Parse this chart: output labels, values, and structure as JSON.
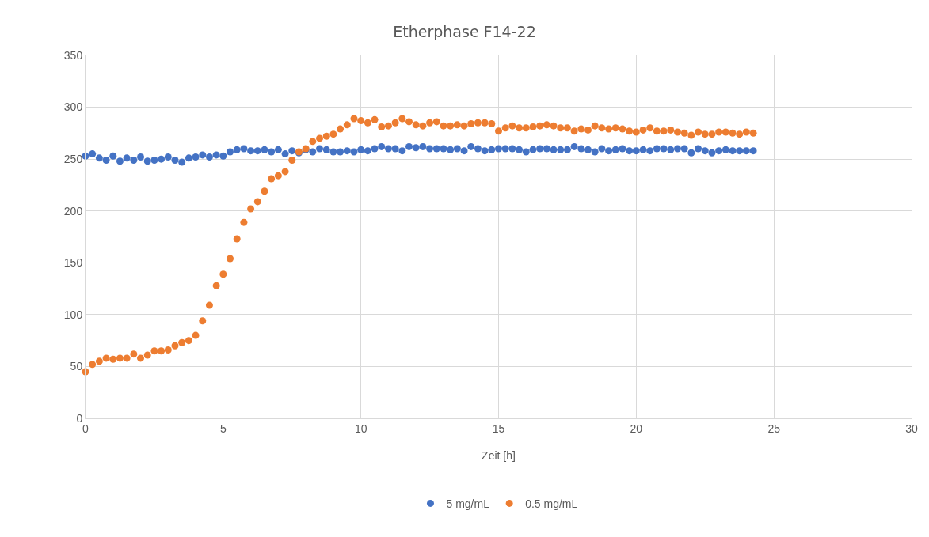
{
  "chart_data": {
    "type": "scatter",
    "title": "Etherphase F14-22",
    "xlabel": "Zeit [h]",
    "x": [
      0,
      0.25,
      0.5,
      0.75,
      1,
      1.25,
      1.5,
      1.75,
      2,
      2.25,
      2.5,
      2.75,
      3,
      3.25,
      3.5,
      3.75,
      4,
      4.25,
      4.5,
      4.75,
      5,
      5.25,
      5.5,
      5.75,
      6,
      6.25,
      6.5,
      6.75,
      7,
      7.25,
      7.5,
      7.75,
      8,
      8.25,
      8.5,
      8.75,
      9,
      9.25,
      9.5,
      9.75,
      10,
      10.25,
      10.5,
      10.75,
      11,
      11.25,
      11.5,
      11.75,
      12,
      12.25,
      12.5,
      12.75,
      13,
      13.25,
      13.5,
      13.75,
      14,
      14.25,
      14.5,
      14.75,
      15,
      15.25,
      15.5,
      15.75,
      16,
      16.25,
      16.5,
      16.75,
      17,
      17.25,
      17.5,
      17.75,
      18,
      18.25,
      18.5,
      18.75,
      19,
      19.25,
      19.5,
      19.75,
      20,
      20.25,
      20.5,
      20.75,
      21,
      21.25,
      21.5,
      21.75,
      22,
      22.25,
      22.5,
      22.75,
      23,
      23.25,
      23.5,
      23.75,
      24,
      24.25
    ],
    "series": [
      {
        "name": "5 mg/mL",
        "color": "#4472c4",
        "values": [
          253,
          255,
          251,
          249,
          253,
          248,
          251,
          249,
          252,
          248,
          249,
          250,
          252,
          249,
          247,
          251,
          252,
          254,
          252,
          254,
          253,
          257,
          259,
          260,
          258,
          258,
          259,
          257,
          259,
          255,
          258,
          256,
          259,
          257,
          260,
          259,
          257,
          257,
          258,
          257,
          259,
          258,
          260,
          262,
          260,
          260,
          258,
          262,
          261,
          262,
          260,
          260,
          260,
          259,
          260,
          258,
          262,
          260,
          258,
          259,
          260,
          260,
          260,
          259,
          257,
          259,
          260,
          260,
          259,
          259,
          259,
          262,
          260,
          259,
          257,
          260,
          258,
          259,
          260,
          258,
          258,
          259,
          258,
          260,
          260,
          259,
          260,
          260,
          256,
          260,
          258,
          256,
          258,
          259,
          258,
          258,
          258,
          258
        ]
      },
      {
        "name": "0.5 mg/mL",
        "color": "#ed7d31",
        "values": [
          45,
          52,
          55,
          58,
          57,
          58,
          58,
          62,
          58,
          61,
          65,
          65,
          66,
          70,
          73,
          75,
          80,
          94,
          109,
          128,
          139,
          154,
          173,
          189,
          202,
          209,
          219,
          231,
          234,
          238,
          249,
          257,
          260,
          267,
          270,
          272,
          274,
          279,
          283,
          289,
          287,
          285,
          288,
          281,
          282,
          285,
          289,
          286,
          283,
          282,
          285,
          286,
          282,
          282,
          283,
          282,
          284,
          285,
          285,
          284,
          277,
          280,
          282,
          280,
          280,
          281,
          282,
          283,
          282,
          280,
          280,
          277,
          279,
          278,
          282,
          280,
          279,
          280,
          279,
          277,
          276,
          278,
          280,
          277,
          277,
          278,
          276,
          275,
          273,
          276,
          274,
          274,
          276,
          276,
          275,
          274,
          276,
          275
        ]
      }
    ],
    "xlim": [
      0,
      30
    ],
    "xticks": [
      0,
      5,
      10,
      15,
      20,
      25,
      30
    ],
    "ylim": [
      0,
      350
    ],
    "yticks": [
      0,
      50,
      100,
      150,
      200,
      250,
      300,
      350
    ],
    "grid": true,
    "legend": "bottom",
    "marker": "circle"
  }
}
